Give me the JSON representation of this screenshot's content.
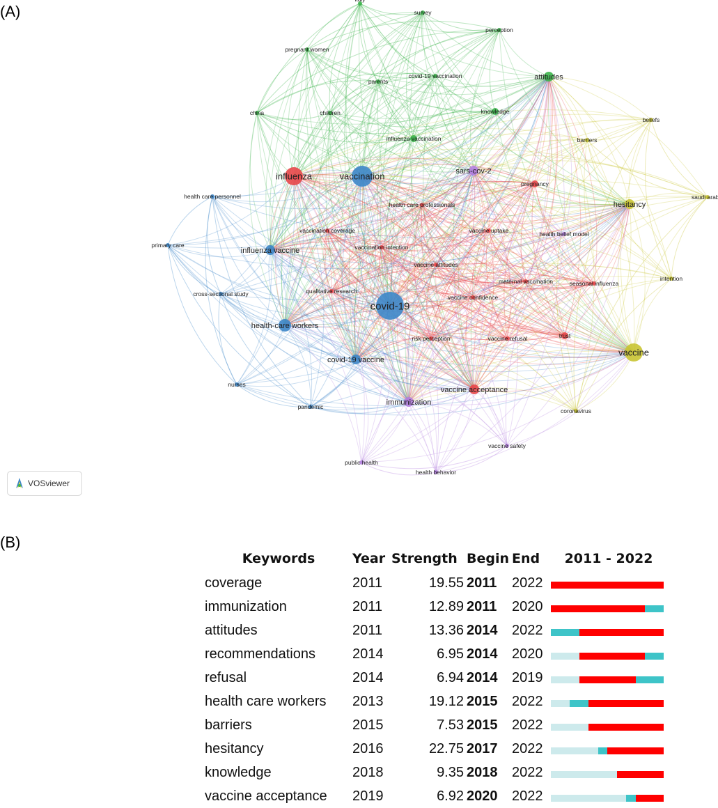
{
  "panels": {
    "a_label": "(A)",
    "b_label": "(B)"
  },
  "colors": {
    "cluster_red": "#e8474a",
    "cluster_green": "#3cb44b",
    "cluster_blue": "#3d86c8",
    "cluster_yellow": "#c9c432",
    "cluster_purple": "#b480e0",
    "burst_red": "#ff0000",
    "burst_present": "#3ec4c8",
    "burst_absent": "#cdeaec"
  },
  "vosviewer": {
    "brand_text": "VOSviewer"
  },
  "chart_data": [
    {
      "type": "network",
      "nodes": [
        {
          "label": "italy",
          "cluster": "green",
          "weight": 1
        },
        {
          "label": "survey",
          "cluster": "green",
          "weight": 1
        },
        {
          "label": "perception",
          "cluster": "green",
          "weight": 1
        },
        {
          "label": "pregnant women",
          "cluster": "green",
          "weight": 1
        },
        {
          "label": "covid-19 vaccination",
          "cluster": "green",
          "weight": 1
        },
        {
          "label": "parents",
          "cluster": "green",
          "weight": 1
        },
        {
          "label": "attitudes",
          "cluster": "green",
          "weight": 3
        },
        {
          "label": "china",
          "cluster": "green",
          "weight": 1
        },
        {
          "label": "children",
          "cluster": "green",
          "weight": 1
        },
        {
          "label": "knowledge",
          "cluster": "green",
          "weight": 2
        },
        {
          "label": "influenza vaccination",
          "cluster": "green",
          "weight": 2
        },
        {
          "label": "barriers",
          "cluster": "yellow",
          "weight": 1
        },
        {
          "label": "beliefs",
          "cluster": "yellow",
          "weight": 1
        },
        {
          "label": "hesitancy",
          "cluster": "yellow",
          "weight": 3
        },
        {
          "label": "saudi arabia",
          "cluster": "yellow",
          "weight": 1
        },
        {
          "label": "intention",
          "cluster": "yellow",
          "weight": 1
        },
        {
          "label": "vaccine",
          "cluster": "yellow",
          "weight": 5
        },
        {
          "label": "coronavirus",
          "cluster": "yellow",
          "weight": 1
        },
        {
          "label": "influenza",
          "cluster": "red",
          "weight": 5
        },
        {
          "label": "pregnancy",
          "cluster": "red",
          "weight": 2
        },
        {
          "label": "health care professionals",
          "cluster": "red",
          "weight": 1
        },
        {
          "label": "vaccination coverage",
          "cluster": "red",
          "weight": 1
        },
        {
          "label": "vaccination intention",
          "cluster": "red",
          "weight": 1
        },
        {
          "label": "vaccine uptake",
          "cluster": "red",
          "weight": 1
        },
        {
          "label": "vaccine attitudes",
          "cluster": "red",
          "weight": 1
        },
        {
          "label": "maternal vaccination",
          "cluster": "red",
          "weight": 1
        },
        {
          "label": "seasonal influenza",
          "cluster": "red",
          "weight": 1
        },
        {
          "label": "qualitative research",
          "cluster": "red",
          "weight": 1
        },
        {
          "label": "vaccine confidence",
          "cluster": "red",
          "weight": 1
        },
        {
          "label": "trust",
          "cluster": "red",
          "weight": 2
        },
        {
          "label": "risk perception",
          "cluster": "red",
          "weight": 1
        },
        {
          "label": "vaccine refusal",
          "cluster": "red",
          "weight": 1
        },
        {
          "label": "vaccine acceptance",
          "cluster": "red",
          "weight": 3
        },
        {
          "label": "vaccination",
          "cluster": "blue",
          "weight": 7
        },
        {
          "label": "health care personnel",
          "cluster": "blue",
          "weight": 1
        },
        {
          "label": "primary care",
          "cluster": "blue",
          "weight": 1
        },
        {
          "label": "influenza vaccine",
          "cluster": "blue",
          "weight": 3
        },
        {
          "label": "cross-sectional study",
          "cluster": "blue",
          "weight": 1
        },
        {
          "label": "covid-19",
          "cluster": "blue",
          "weight": 9
        },
        {
          "label": "health-care workers",
          "cluster": "blue",
          "weight": 4
        },
        {
          "label": "covid-19 vaccine",
          "cluster": "blue",
          "weight": 3
        },
        {
          "label": "nurses",
          "cluster": "blue",
          "weight": 1
        },
        {
          "label": "pandemic",
          "cluster": "blue",
          "weight": 1
        },
        {
          "label": "sars-cov-2",
          "cluster": "purple",
          "weight": 3
        },
        {
          "label": "health belief model",
          "cluster": "purple",
          "weight": 1
        },
        {
          "label": "immunization",
          "cluster": "purple",
          "weight": 3
        },
        {
          "label": "public health",
          "cluster": "purple",
          "weight": 1
        },
        {
          "label": "health behavior",
          "cluster": "purple",
          "weight": 1
        },
        {
          "label": "vaccine safety",
          "cluster": "purple",
          "weight": 1
        }
      ]
    },
    {
      "type": "table",
      "title": "",
      "columns": [
        "Keywords",
        "Year",
        "Strength",
        "Begin",
        "End",
        "2011 - 2022"
      ],
      "range": [
        2011,
        2022
      ],
      "rows": [
        {
          "keyword": "coverage",
          "year": "2011",
          "strength": "19.55",
          "begin": "2011",
          "end": "2022"
        },
        {
          "keyword": "immunization",
          "year": "2011",
          "strength": "12.89",
          "begin": "2011",
          "end": "2020"
        },
        {
          "keyword": "attitudes",
          "year": "2011",
          "strength": "13.36",
          "begin": "2014",
          "end": "2022"
        },
        {
          "keyword": "recommendations",
          "year": "2014",
          "strength": "6.95",
          "begin": "2014",
          "end": "2020"
        },
        {
          "keyword": "refusal",
          "year": "2014",
          "strength": "6.94",
          "begin": "2014",
          "end": "2019"
        },
        {
          "keyword": "health care workers",
          "year": "2013",
          "strength": "19.12",
          "begin": "2015",
          "end": "2022"
        },
        {
          "keyword": "barriers",
          "year": "2015",
          "strength": "7.53",
          "begin": "2015",
          "end": "2022"
        },
        {
          "keyword": "hesitancy",
          "year": "2016",
          "strength": "22.75",
          "begin": "2017",
          "end": "2022"
        },
        {
          "keyword": "knowledge",
          "year": "2018",
          "strength": "9.35",
          "begin": "2018",
          "end": "2022"
        },
        {
          "keyword": "vaccine acceptance",
          "year": "2019",
          "strength": "6.92",
          "begin": "2020",
          "end": "2022"
        }
      ]
    }
  ]
}
